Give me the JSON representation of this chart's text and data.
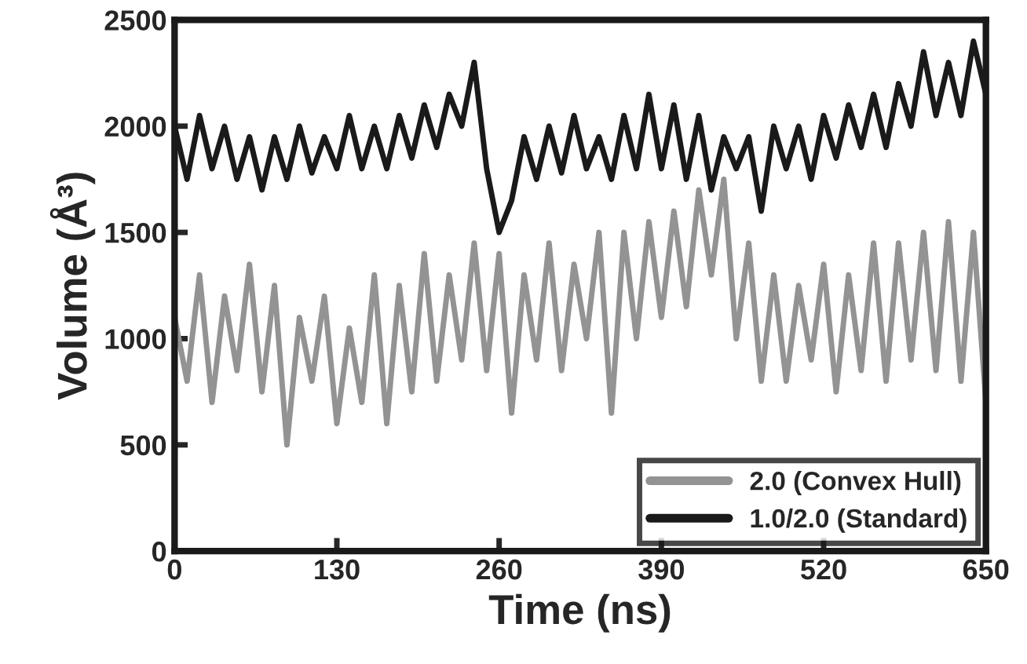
{
  "chart_data": {
    "type": "line",
    "xlabel": "Time (ns)",
    "ylabel": "Volume (Å³)",
    "x": [
      0,
      10,
      20,
      30,
      40,
      50,
      60,
      70,
      80,
      90,
      100,
      110,
      120,
      130,
      140,
      150,
      160,
      170,
      180,
      190,
      200,
      210,
      220,
      230,
      240,
      250,
      260,
      270,
      280,
      290,
      300,
      310,
      320,
      330,
      340,
      350,
      360,
      370,
      380,
      390,
      400,
      410,
      420,
      430,
      440,
      450,
      460,
      470,
      480,
      490,
      500,
      510,
      520,
      530,
      540,
      550,
      560,
      570,
      580,
      590,
      600,
      610,
      620,
      630,
      640,
      650
    ],
    "series": [
      {
        "name": "2.0 (Convex Hull)",
        "color": "#939393",
        "values": [
          1100,
          800,
          1300,
          700,
          1200,
          850,
          1350,
          750,
          1250,
          500,
          1100,
          800,
          1200,
          600,
          1050,
          700,
          1300,
          600,
          1250,
          750,
          1400,
          800,
          1300,
          900,
          1450,
          850,
          1400,
          650,
          1300,
          900,
          1450,
          850,
          1350,
          1000,
          1500,
          650,
          1500,
          1000,
          1550,
          1100,
          1600,
          1150,
          1700,
          1300,
          1750,
          1000,
          1450,
          800,
          1300,
          800,
          1250,
          900,
          1350,
          750,
          1300,
          850,
          1450,
          800,
          1450,
          900,
          1500,
          850,
          1550,
          800,
          1500,
          700
        ]
      },
      {
        "name": "1.0/2.0 (Standard)",
        "color": "#1a1a1a",
        "values": [
          2000,
          1750,
          2050,
          1800,
          2000,
          1750,
          1950,
          1700,
          1950,
          1750,
          2000,
          1780,
          1950,
          1800,
          2050,
          1800,
          2000,
          1800,
          2050,
          1850,
          2100,
          1900,
          2150,
          2000,
          2300,
          1800,
          1500,
          1650,
          1950,
          1750,
          2000,
          1780,
          2050,
          1800,
          1950,
          1750,
          2050,
          1800,
          2150,
          1800,
          2100,
          1750,
          2050,
          1700,
          1950,
          1800,
          1950,
          1600,
          2000,
          1800,
          2000,
          1750,
          2050,
          1850,
          2100,
          1900,
          2150,
          1900,
          2200,
          2000,
          2350,
          2050,
          2300,
          2050,
          2400,
          2150
        ]
      }
    ],
    "xlim": [
      0,
      650
    ],
    "xticks": [
      0,
      130,
      260,
      390,
      520,
      650
    ],
    "ylim": [
      0,
      2500
    ],
    "yticks": [
      0,
      500,
      1000,
      1500,
      2000,
      2500
    ],
    "grid": false,
    "legend": "bottom right",
    "line_style": "solid",
    "marker": "none"
  }
}
